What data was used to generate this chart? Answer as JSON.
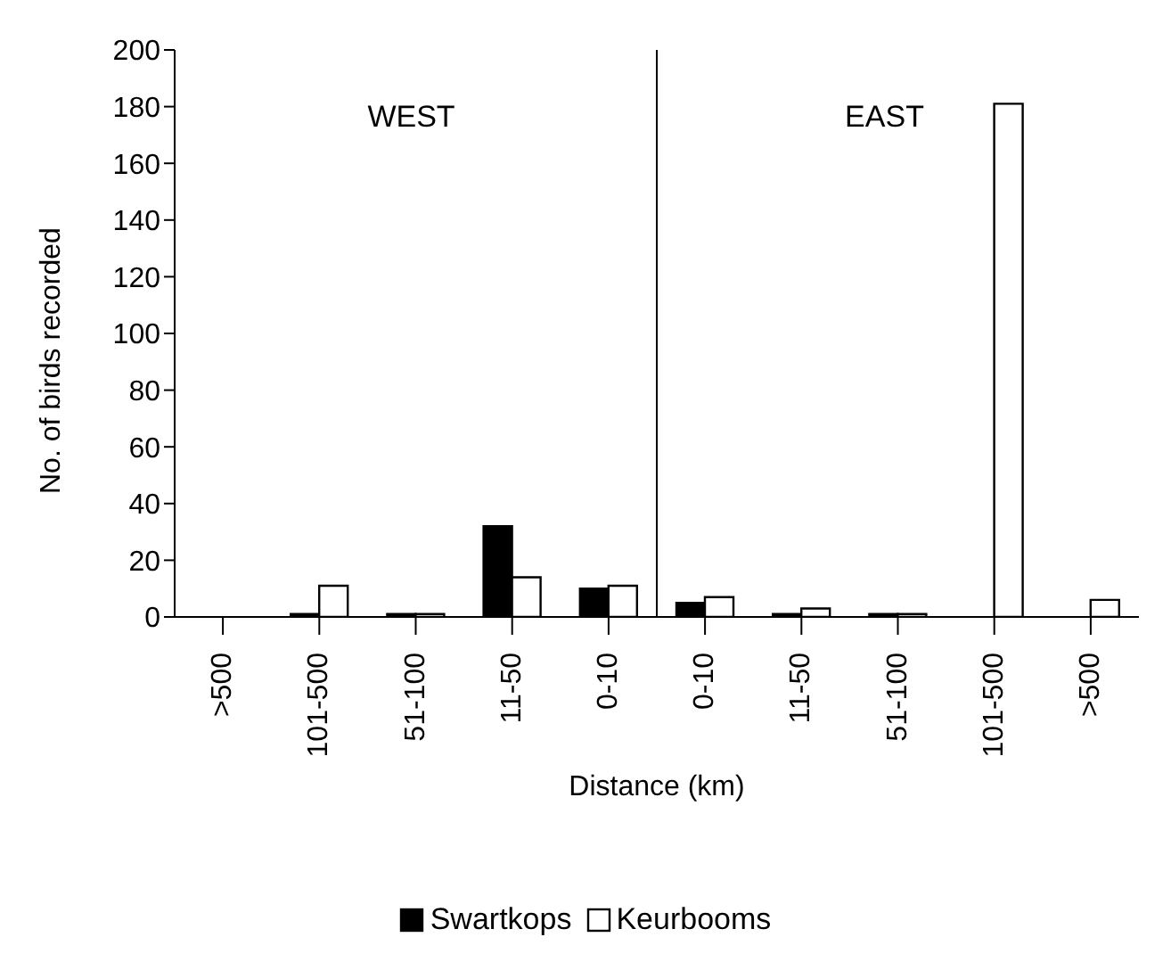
{
  "chart_data": {
    "type": "bar",
    "xlabel": "Distance (km)",
    "ylabel": "No. of birds recorded",
    "categories": [
      ">500",
      "101-500",
      "51-100",
      "11-50",
      "0-10",
      "0-10",
      "11-50",
      "51-100",
      "101-500",
      ">500"
    ],
    "series": [
      {
        "name": "Swartkops",
        "color": "#000000",
        "values": [
          0,
          1,
          1,
          32,
          10,
          5,
          1,
          1,
          0,
          0
        ]
      },
      {
        "name": "Keurbooms",
        "color": "#ffffff",
        "values": [
          0,
          11,
          1,
          14,
          11,
          7,
          3,
          1,
          181,
          6
        ]
      }
    ],
    "ylim": [
      0,
      200
    ],
    "yticks": [
      0,
      20,
      40,
      60,
      80,
      100,
      120,
      140,
      160,
      180,
      200
    ],
    "annotations": [
      "WEST",
      "EAST"
    ],
    "legend": "bottom"
  }
}
